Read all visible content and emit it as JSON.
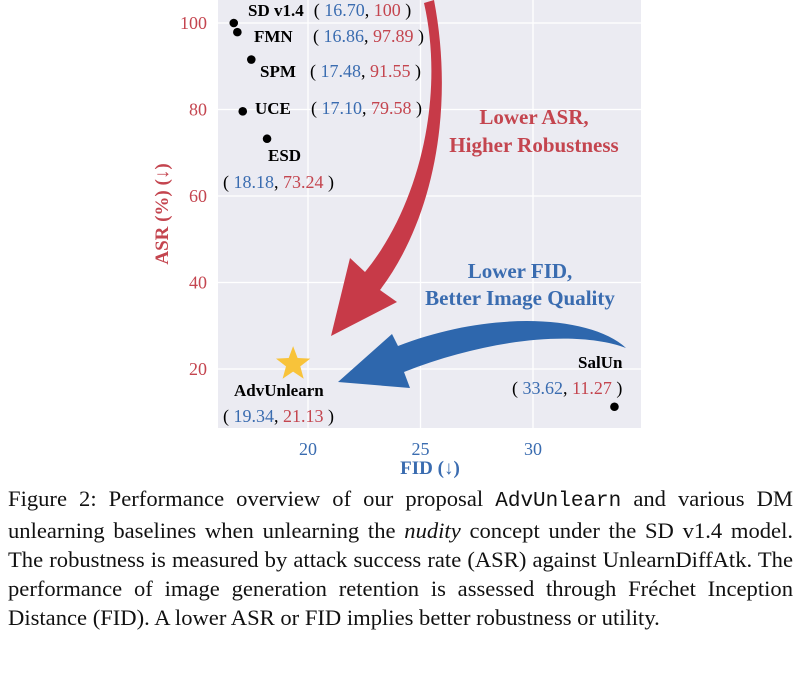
{
  "chart_data": {
    "type": "scatter",
    "xlabel": "FID (↓)",
    "ylabel": "ASR (%) (↓)",
    "xlim": [
      16,
      34.5
    ],
    "ylim": [
      8,
      105
    ],
    "xticks": [
      20,
      25,
      30
    ],
    "yticks": [
      20,
      40,
      60,
      80,
      100
    ],
    "grid": true,
    "points": [
      {
        "name": "SD v1.4",
        "x": 16.7,
        "y": 100,
        "x_text": "16.70",
        "y_text": "100",
        "marker": "dot"
      },
      {
        "name": "FMN",
        "x": 16.86,
        "y": 97.89,
        "x_text": "16.86",
        "y_text": "97.89",
        "marker": "dot"
      },
      {
        "name": "SPM",
        "x": 17.48,
        "y": 91.55,
        "x_text": "17.48",
        "y_text": "91.55",
        "marker": "dot"
      },
      {
        "name": "UCE",
        "x": 17.1,
        "y": 79.58,
        "x_text": "17.10",
        "y_text": "79.58",
        "marker": "dot"
      },
      {
        "name": "ESD",
        "x": 18.18,
        "y": 73.24,
        "x_text": "18.18",
        "y_text": "73.24",
        "marker": "dot"
      },
      {
        "name": "AdvUnlearn",
        "x": 19.34,
        "y": 21.13,
        "x_text": "19.34",
        "y_text": "21.13",
        "marker": "star"
      },
      {
        "name": "SalUn",
        "x": 33.62,
        "y": 11.27,
        "x_text": "33.62",
        "y_text": "11.27",
        "marker": "dot"
      }
    ],
    "annotations": {
      "red_line1": "Lower ASR,",
      "red_line2": "Higher Robustness",
      "blue_line1": "Lower FID,",
      "blue_line2": "Better Image Quality"
    },
    "colors": {
      "fid_blue": "#3a6cb0",
      "asr_red": "#c4454f",
      "arrow_red": "#c73a48",
      "arrow_blue": "#2e67ad",
      "star": "#f8c33a",
      "plot_bg": "#ebebf2"
    }
  },
  "caption": {
    "label": "Figure 2:",
    "t1": " Performance overview of our proposal ",
    "code": "AdvUnlearn",
    "t2": " and various DM unlearning baselines when unlearning the ",
    "italic": "nudity",
    "t3": " concept under the SD v1.4 model. The robustness is measured by attack success rate (ASR) against UnlearnDiffAtk. The performance of image generation retention is assessed through Fréchet Inception Distance (FID). A lower ASR or FID implies better robustness or utility."
  }
}
